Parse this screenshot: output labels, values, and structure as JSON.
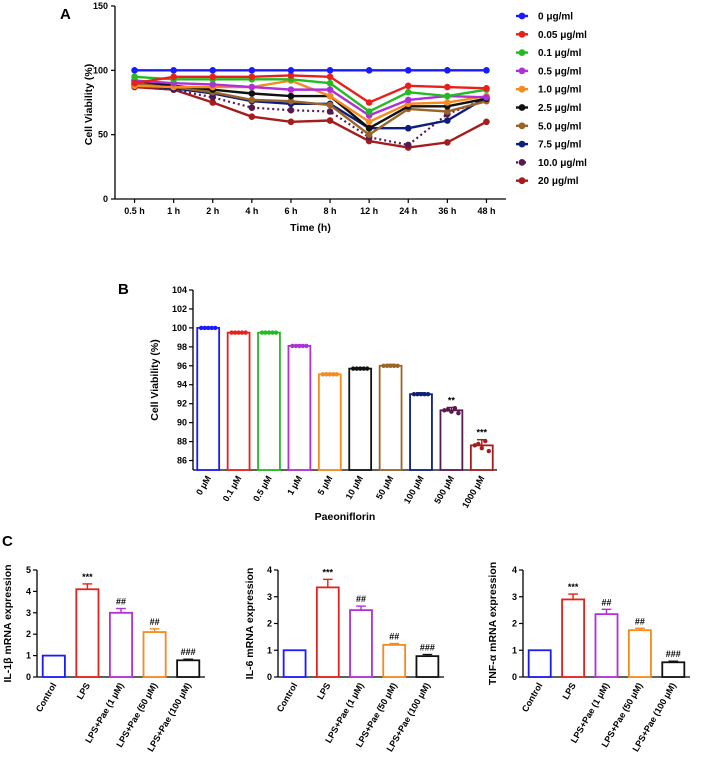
{
  "chart_data": [
    {
      "panel": "A",
      "type": "line",
      "title": "",
      "xlabel": "Time (h)",
      "ylabel": "Cell Viability (%)",
      "ylim": [
        0,
        150
      ],
      "yticks": [
        0,
        50,
        100,
        150
      ],
      "categories": [
        "0.5 h",
        "1 h",
        "2 h",
        "4 h",
        "6 h",
        "8 h",
        "12 h",
        "24 h",
        "36 h",
        "48 h"
      ],
      "legend_position": "right",
      "series": [
        {
          "name": "0 μg/ml",
          "color": "#1a1aff",
          "dashed": false,
          "values": [
            100,
            100,
            100,
            100,
            100,
            100,
            100,
            100,
            100,
            100
          ]
        },
        {
          "name": "0.05 μg/ml",
          "color": "#e8201a",
          "dashed": false,
          "values": [
            90,
            95,
            95,
            95,
            96,
            95,
            75,
            88,
            87,
            86
          ]
        },
        {
          "name": "0.1 μg/ml",
          "color": "#22bb22",
          "dashed": false,
          "values": [
            95,
            93,
            93,
            93,
            93,
            90,
            68,
            83,
            80,
            85
          ]
        },
        {
          "name": "0.5 μg/ml",
          "color": "#b030d8",
          "dashed": false,
          "values": [
            92,
            90,
            89,
            87,
            85,
            85,
            65,
            77,
            80,
            79
          ]
        },
        {
          "name": "1.0 μg/ml",
          "color": "#f58a1f",
          "dashed": false,
          "values": [
            88,
            87,
            87,
            87,
            92,
            80,
            60,
            74,
            75,
            80
          ]
        },
        {
          "name": "2.5 μg/ml",
          "color": "#111111",
          "dashed": false,
          "values": [
            92,
            88,
            85,
            82,
            80,
            80,
            55,
            72,
            72,
            78
          ]
        },
        {
          "name": "5.0 μg/ml",
          "color": "#9a6428",
          "dashed": false,
          "values": [
            90,
            87,
            83,
            77,
            76,
            73,
            50,
            70,
            68,
            76
          ]
        },
        {
          "name": "7.5 μg/ml",
          "color": "#0d1f7a",
          "dashed": false,
          "values": [
            89,
            86,
            82,
            76,
            74,
            74,
            55,
            55,
            61,
            79
          ]
        },
        {
          "name": "10.0 μg/ml",
          "color": "#5a1850",
          "dashed": true,
          "values": [
            88,
            85,
            79,
            71,
            69,
            68,
            48,
            42,
            66,
            78
          ]
        },
        {
          "name": "20 μg/ml",
          "color": "#a51c1c",
          "dashed": false,
          "values": [
            87,
            85,
            75,
            64,
            60,
            61,
            45,
            40,
            44,
            60
          ]
        }
      ]
    },
    {
      "panel": "B",
      "type": "bar",
      "title": "",
      "xlabel": "Paeoniflorin",
      "ylabel": "Cell Viability (%)",
      "ylim": [
        85,
        104
      ],
      "yticks": [
        86,
        88,
        90,
        92,
        94,
        96,
        98,
        100,
        102,
        104
      ],
      "categories": [
        "0 μM",
        "0.1 μM",
        "0.5 μM",
        "1 μM",
        "5 μM",
        "10 μM",
        "50 μM",
        "100 μM",
        "500 μM",
        "1000 μM"
      ],
      "values": [
        100.0,
        99.5,
        99.5,
        98.1,
        95.1,
        95.7,
        96.0,
        93.0,
        91.3,
        87.6
      ],
      "errors": [
        0.05,
        0.05,
        0.05,
        0.1,
        0.1,
        0.1,
        0.15,
        0.15,
        0.3,
        0.6
      ],
      "colors": [
        "#1a1aff",
        "#e8201a",
        "#22bb22",
        "#b030d8",
        "#f58a1f",
        "#111111",
        "#9a6428",
        "#0d1f7a",
        "#5a1850",
        "#a51c1c"
      ],
      "significance": [
        "",
        "",
        "",
        "",
        "",
        "",
        "",
        "",
        "**",
        "***"
      ]
    },
    {
      "panel": "C",
      "type": "bar",
      "title": "",
      "xlabel": "",
      "ylabel": "IL-1β mRNA expression",
      "ylim": [
        0,
        5
      ],
      "yticks": [
        0,
        1,
        2,
        3,
        4,
        5
      ],
      "categories": [
        "Control",
        "LPS",
        "LPS+Pae (1 μM)",
        "LPS+Pae (50 μM)",
        "LPS+Pae (100 μM)"
      ],
      "values": [
        1.0,
        4.1,
        3.0,
        2.1,
        0.78
      ],
      "errors": [
        0,
        0.25,
        0.2,
        0.15,
        0.05
      ],
      "colors": [
        "#1a1aff",
        "#e8201a",
        "#b030d8",
        "#f58a1f",
        "#111111"
      ],
      "significance": [
        "",
        "***",
        "##",
        "##",
        "###"
      ]
    },
    {
      "panel": "C",
      "type": "bar",
      "title": "",
      "xlabel": "",
      "ylabel": "IL-6 mRNA expression",
      "ylim": [
        0,
        4
      ],
      "yticks": [
        0,
        1,
        2,
        3,
        4
      ],
      "categories": [
        "Control",
        "LPS",
        "LPS+Pae (1 μM)",
        "LPS+Pae (50 μM)",
        "LPS+Pae (100 μM)"
      ],
      "values": [
        1.0,
        3.35,
        2.5,
        1.2,
        0.78
      ],
      "errors": [
        0,
        0.3,
        0.15,
        0.05,
        0.06
      ],
      "colors": [
        "#1a1aff",
        "#e8201a",
        "#b030d8",
        "#f58a1f",
        "#111111"
      ],
      "significance": [
        "",
        "***",
        "##",
        "##",
        "###"
      ]
    },
    {
      "panel": "C",
      "type": "bar",
      "title": "",
      "xlabel": "",
      "ylabel": "TNF-α mRNA expression",
      "ylim": [
        0,
        4
      ],
      "yticks": [
        0,
        1,
        2,
        3,
        4
      ],
      "categories": [
        "Control",
        "LPS",
        "LPS+Pae (1 μM)",
        "LPS+Pae (50 μM)",
        "LPS+Pae (100 μM)"
      ],
      "values": [
        1.0,
        2.9,
        2.35,
        1.75,
        0.55
      ],
      "errors": [
        0,
        0.2,
        0.18,
        0.07,
        0.04
      ],
      "colors": [
        "#1a1aff",
        "#e8201a",
        "#b030d8",
        "#f58a1f",
        "#111111"
      ],
      "significance": [
        "",
        "***",
        "##",
        "##",
        "###"
      ]
    }
  ]
}
